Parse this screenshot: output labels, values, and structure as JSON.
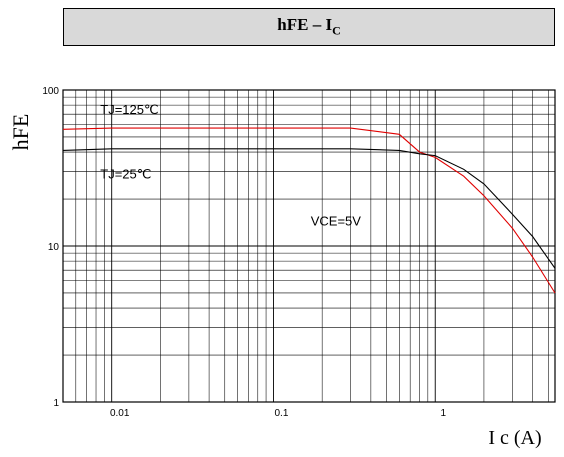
{
  "title": {
    "main": "hFE – I",
    "sub": "C"
  },
  "chart_data": {
    "type": "line",
    "xscale": "log",
    "yscale": "log",
    "xlim": [
      0.005,
      5.5
    ],
    "ylim": [
      1,
      100
    ],
    "xlabel": "I c (A)",
    "ylabel": "hFE",
    "xticks": [
      {
        "value": 0.01,
        "label": "0.01"
      },
      {
        "value": 0.1,
        "label": "0.1"
      },
      {
        "value": 1,
        "label": "1"
      }
    ],
    "yticks": [
      {
        "value": 1,
        "label": "1"
      },
      {
        "value": 10,
        "label": "10"
      },
      {
        "value": 100,
        "label": "100"
      }
    ],
    "grid": true,
    "series": [
      {
        "name": "TJ=125℃",
        "color": "#e00000",
        "x": [
          0.005,
          0.01,
          0.05,
          0.1,
          0.3,
          0.6,
          0.8,
          1.0,
          1.5,
          2.0,
          3.0,
          4.0,
          5.5
        ],
        "y": [
          56,
          57,
          57,
          57,
          57,
          52,
          40,
          37,
          28,
          21,
          13,
          8.5,
          5
        ]
      },
      {
        "name": "TJ=25℃",
        "color": "#000000",
        "x": [
          0.005,
          0.01,
          0.05,
          0.1,
          0.3,
          0.6,
          0.8,
          1.0,
          1.5,
          2.0,
          3.0,
          4.0,
          5.5
        ],
        "y": [
          41,
          42,
          42,
          42,
          42,
          41,
          39,
          38,
          31,
          25,
          16,
          11.5,
          7.2
        ]
      }
    ],
    "annotations": [
      {
        "text": "TJ=125℃",
        "x": 0.0085,
        "y": 70
      },
      {
        "text": "TJ=25℃",
        "x": 0.0085,
        "y": 27
      },
      {
        "text": "VCE=5V",
        "x": 0.17,
        "y": 13.5
      }
    ]
  }
}
